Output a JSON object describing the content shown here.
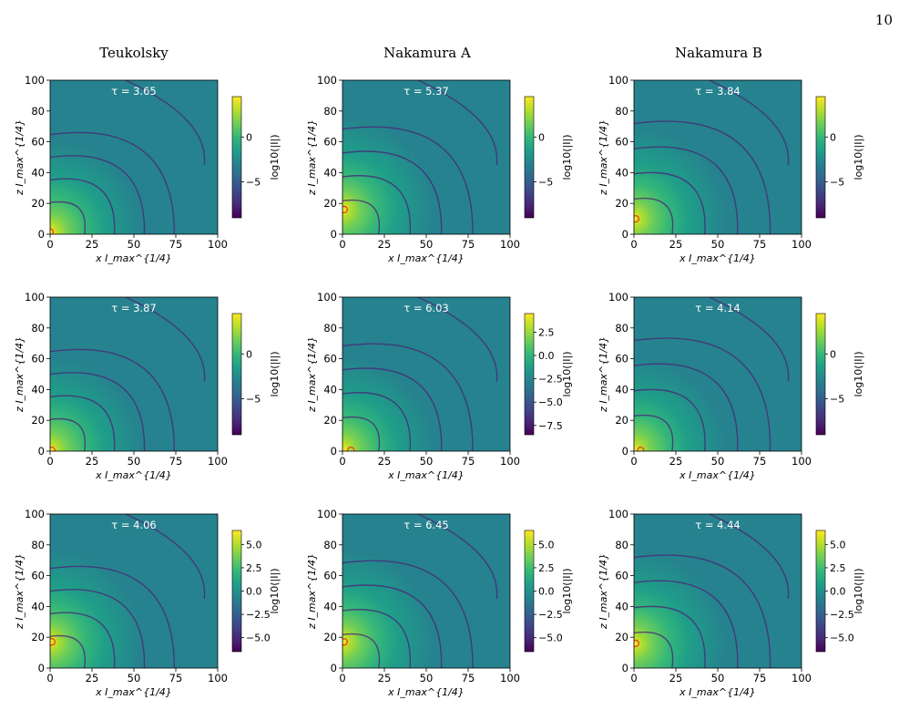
{
  "page_number": "10",
  "column_titles": [
    "Teukolsky",
    "Nakamura A",
    "Nakamura B"
  ],
  "colormap": [
    "#440154",
    "#482878",
    "#3e4989",
    "#31688e",
    "#26828e",
    "#1f9e89",
    "#35b779",
    "#6ece58",
    "#b5de2b",
    "#fde725"
  ],
  "marker_color": "#e8421c",
  "chart_data": [
    {
      "type": "heatmap",
      "row": 0,
      "col": 0,
      "annotation": "τ = 3.65",
      "xlabel": "x I_max^{1/4}",
      "ylabel": "z I_max^{1/4}",
      "xlim": [
        0,
        100
      ],
      "ylim": [
        0,
        100
      ],
      "xticks": [
        0,
        25,
        50,
        75,
        100
      ],
      "yticks": [
        0,
        20,
        40,
        60,
        80,
        100
      ],
      "colorbar_label": "log10(|I|)",
      "colorbar_range": [
        -9,
        4.5
      ],
      "colorbar_ticks": [
        0,
        -5
      ],
      "marker": [
        0,
        1.5
      ]
    },
    {
      "type": "heatmap",
      "row": 0,
      "col": 1,
      "annotation": "τ = 5.37",
      "xlabel": "x I_max^{1/4}",
      "ylabel": "z I_max^{1/4}",
      "xlim": [
        0,
        100
      ],
      "ylim": [
        0,
        100
      ],
      "xticks": [
        0,
        25,
        50,
        75,
        100
      ],
      "yticks": [
        0,
        20,
        40,
        60,
        80,
        100
      ],
      "colorbar_label": "log10(|I|)",
      "colorbar_range": [
        -9,
        4.5
      ],
      "colorbar_ticks": [
        0,
        -5
      ],
      "marker": [
        1,
        16
      ]
    },
    {
      "type": "heatmap",
      "row": 0,
      "col": 2,
      "annotation": "τ = 3.84",
      "xlabel": "x I_max^{1/4}",
      "ylabel": "z I_max^{1/4}",
      "xlim": [
        0,
        100
      ],
      "ylim": [
        0,
        100
      ],
      "xticks": [
        0,
        25,
        50,
        75,
        100
      ],
      "yticks": [
        0,
        20,
        40,
        60,
        80,
        100
      ],
      "colorbar_label": "log10(|I|)",
      "colorbar_range": [
        -9,
        4.5
      ],
      "colorbar_ticks": [
        0,
        -5
      ],
      "marker": [
        1,
        10
      ]
    },
    {
      "type": "heatmap",
      "row": 1,
      "col": 0,
      "annotation": "τ = 3.87",
      "xlabel": "x I_max^{1/4}",
      "ylabel": "z I_max^{1/4}",
      "xlim": [
        0,
        100
      ],
      "ylim": [
        0,
        100
      ],
      "xticks": [
        0,
        25,
        50,
        75,
        100
      ],
      "yticks": [
        0,
        20,
        40,
        60,
        80,
        100
      ],
      "colorbar_label": "log10(|I|)",
      "colorbar_range": [
        -9,
        4.5
      ],
      "colorbar_ticks": [
        0,
        -5
      ],
      "marker": [
        1,
        0.5
      ]
    },
    {
      "type": "heatmap",
      "row": 1,
      "col": 1,
      "annotation": "τ = 6.03",
      "xlabel": "x I_max^{1/4}",
      "ylabel": "z I_max^{1/4}",
      "xlim": [
        0,
        100
      ],
      "ylim": [
        0,
        100
      ],
      "xticks": [
        0,
        25,
        50,
        75,
        100
      ],
      "yticks": [
        0,
        20,
        40,
        60,
        80,
        100
      ],
      "colorbar_label": "log10(|I|)",
      "colorbar_range": [
        -8.5,
        4.5
      ],
      "colorbar_ticks": [
        "2.5",
        "0.0",
        "−2.5",
        "−5.0",
        "−7.5"
      ],
      "colorbar_tick_values": [
        2.5,
        0,
        -2.5,
        -5,
        -7.5
      ],
      "marker": [
        5,
        0.5
      ]
    },
    {
      "type": "heatmap",
      "row": 1,
      "col": 2,
      "annotation": "τ = 4.14",
      "xlabel": "x I_max^{1/4}",
      "ylabel": "z I_max^{1/4}",
      "xlim": [
        0,
        100
      ],
      "ylim": [
        0,
        100
      ],
      "xticks": [
        0,
        25,
        50,
        75,
        100
      ],
      "yticks": [
        0,
        20,
        40,
        60,
        80,
        100
      ],
      "colorbar_label": "log10(|I|)",
      "colorbar_range": [
        -9,
        4.5
      ],
      "colorbar_ticks": [
        0,
        -5
      ],
      "marker": [
        4,
        0.5
      ]
    },
    {
      "type": "heatmap",
      "row": 2,
      "col": 0,
      "annotation": "τ = 4.06",
      "xlabel": "x I_max^{1/4}",
      "ylabel": "z I_max^{1/4}",
      "xlim": [
        0,
        100
      ],
      "ylim": [
        0,
        100
      ],
      "xticks": [
        0,
        25,
        50,
        75,
        100
      ],
      "yticks": [
        0,
        20,
        40,
        60,
        80,
        100
      ],
      "colorbar_label": "log10(|I|)",
      "colorbar_range": [
        -6.5,
        6.5
      ],
      "colorbar_ticks": [
        "5.0",
        "2.5",
        "0.0",
        "−2.5",
        "−5.0"
      ],
      "colorbar_tick_values": [
        5,
        2.5,
        0,
        -2.5,
        -5
      ],
      "marker": [
        1,
        17
      ]
    },
    {
      "type": "heatmap",
      "row": 2,
      "col": 1,
      "annotation": "τ = 6.45",
      "xlabel": "x I_max^{1/4}",
      "ylabel": "z I_max^{1/4}",
      "xlim": [
        0,
        100
      ],
      "ylim": [
        0,
        100
      ],
      "xticks": [
        0,
        25,
        50,
        75,
        100
      ],
      "yticks": [
        0,
        20,
        40,
        60,
        80,
        100
      ],
      "colorbar_label": "log10(|I|)",
      "colorbar_range": [
        -6.5,
        6.5
      ],
      "colorbar_ticks": [
        "5.0",
        "2.5",
        "0.0",
        "−2.5",
        "−5.0"
      ],
      "colorbar_tick_values": [
        5,
        2.5,
        0,
        -2.5,
        -5
      ],
      "marker": [
        1,
        17
      ]
    },
    {
      "type": "heatmap",
      "row": 2,
      "col": 2,
      "annotation": "τ = 4.44",
      "xlabel": "x I_max^{1/4}",
      "ylabel": "z I_max^{1/4}",
      "xlim": [
        0,
        100
      ],
      "ylim": [
        0,
        100
      ],
      "xticks": [
        0,
        25,
        50,
        75,
        100
      ],
      "yticks": [
        0,
        20,
        40,
        60,
        80,
        100
      ],
      "colorbar_label": "log10(|I|)",
      "colorbar_range": [
        -6.5,
        6.5
      ],
      "colorbar_ticks": [
        "5.0",
        "2.5",
        "0.0",
        "−2.5",
        "−5.0"
      ],
      "colorbar_tick_values": [
        5,
        2.5,
        0,
        -2.5,
        -5
      ],
      "marker": [
        1,
        16
      ]
    }
  ]
}
